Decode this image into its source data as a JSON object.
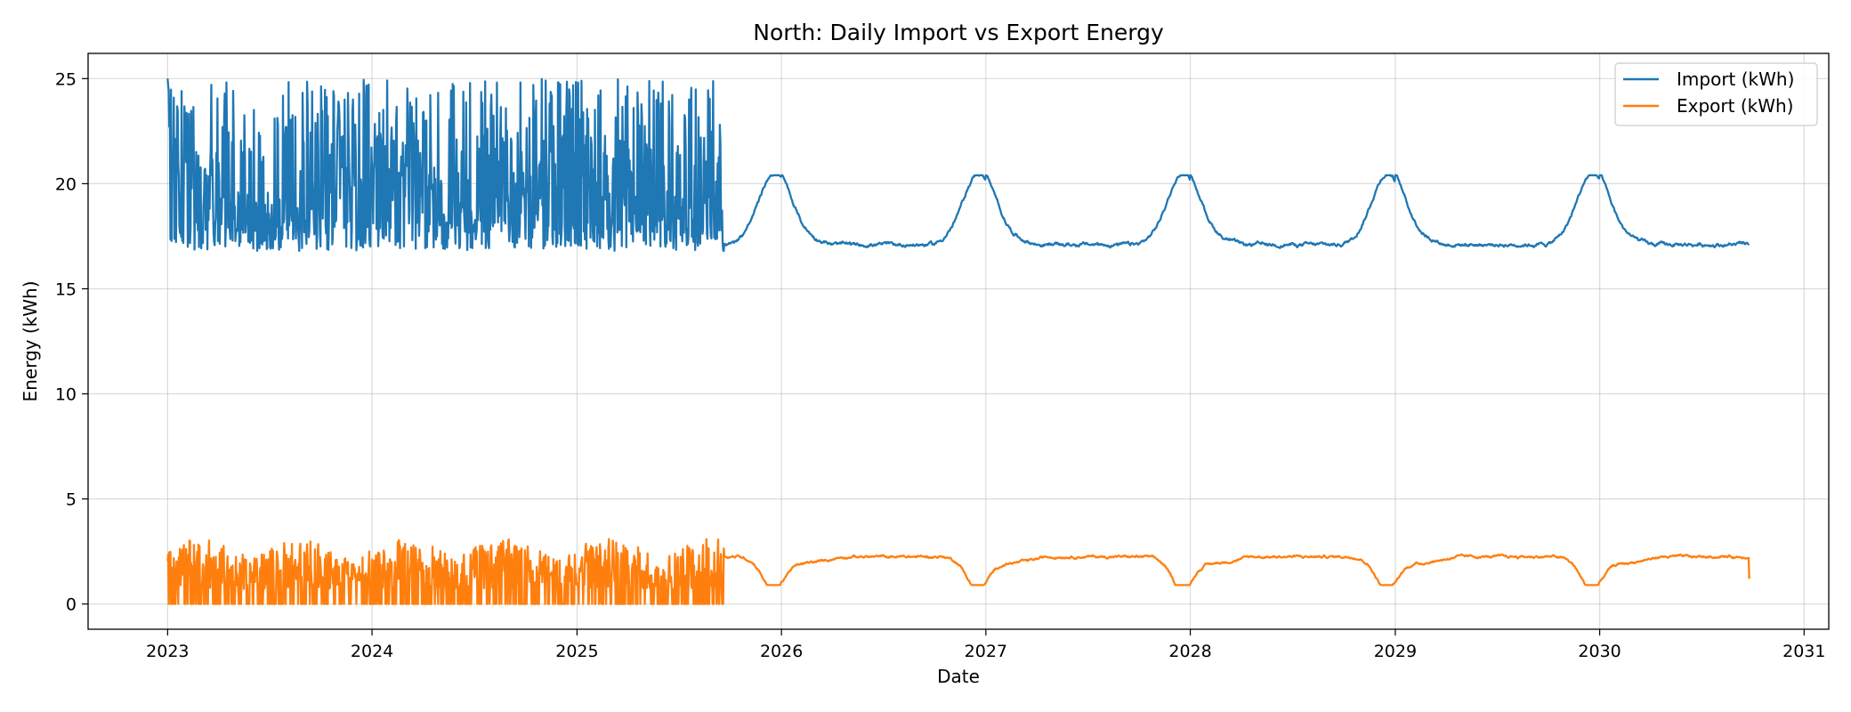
{
  "chart_data": {
    "type": "line",
    "title": "North: Daily Import vs Export Energy",
    "xlabel": "Date",
    "ylabel": "Energy (kWh)",
    "xlim": [
      "2022-08-12",
      "2031-02-14"
    ],
    "ylim": [
      -1.2,
      26.2
    ],
    "x_ticks": [
      "2023",
      "2024",
      "2025",
      "2026",
      "2027",
      "2028",
      "2029",
      "2030",
      "2031"
    ],
    "y_ticks": [
      0,
      5,
      10,
      15,
      20,
      25
    ],
    "grid": true,
    "legend_position": "top-right",
    "date_range": [
      "2023-01-01",
      "2030-09-25"
    ],
    "noisy_until": "2025-09-20",
    "series": [
      {
        "name": "Import (kWh)",
        "color": "#1f77b4",
        "noisy_min": 16.5,
        "noisy_max": 25.0,
        "smooth_min": 16.9,
        "smooth_max": 20.4,
        "smooth_peak_month": "Dec"
      },
      {
        "name": "Export (kWh)",
        "color": "#ff7f0e",
        "noisy_min": 0,
        "noisy_max": 3.6,
        "smooth_min": 0.9,
        "smooth_max": 2.5,
        "smooth_trough_month": "Dec"
      }
    ]
  }
}
